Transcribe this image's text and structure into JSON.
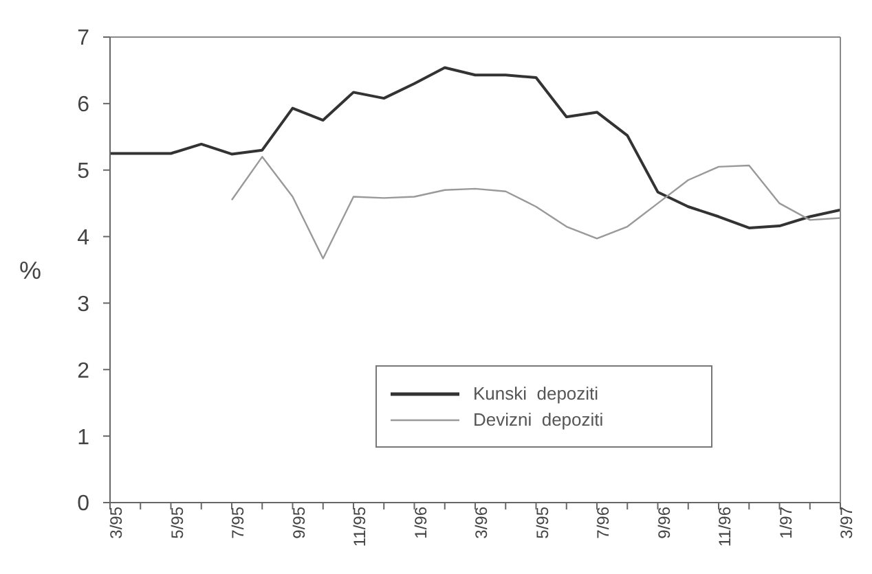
{
  "chart_data": {
    "type": "line",
    "ylabel": "%",
    "categories": [
      "3/95",
      null,
      "5/95",
      null,
      "7/95",
      null,
      "9/95",
      null,
      "11/95",
      null,
      "1/96",
      null,
      "3/96",
      null,
      "5/95",
      null,
      "7/96",
      null,
      "9/96",
      null,
      "11/96",
      null,
      "1/97",
      null,
      "3/97"
    ],
    "series": [
      {
        "name": "Kunski  depoziti",
        "color": "#333333",
        "values": [
          5.25,
          5.25,
          5.25,
          5.39,
          5.24,
          5.3,
          5.93,
          5.75,
          6.17,
          6.08,
          6.3,
          6.54,
          6.43,
          6.43,
          6.39,
          5.8,
          5.87,
          5.52,
          4.67,
          4.45,
          4.3,
          4.13,
          4.16,
          4.3,
          4.4
        ]
      },
      {
        "name": "Devizni  depoziti",
        "color": "#999999",
        "values": [
          null,
          null,
          null,
          null,
          4.55,
          5.2,
          4.6,
          3.67,
          4.6,
          4.58,
          4.6,
          4.7,
          4.72,
          4.68,
          4.45,
          4.15,
          3.97,
          4.15,
          4.5,
          4.85,
          5.05,
          5.07,
          4.5,
          4.25,
          4.28
        ]
      }
    ],
    "ylim": [
      0,
      7
    ],
    "yticks": [
      0,
      1,
      2,
      3,
      4,
      5,
      6,
      7
    ],
    "legend": "bottom right"
  }
}
